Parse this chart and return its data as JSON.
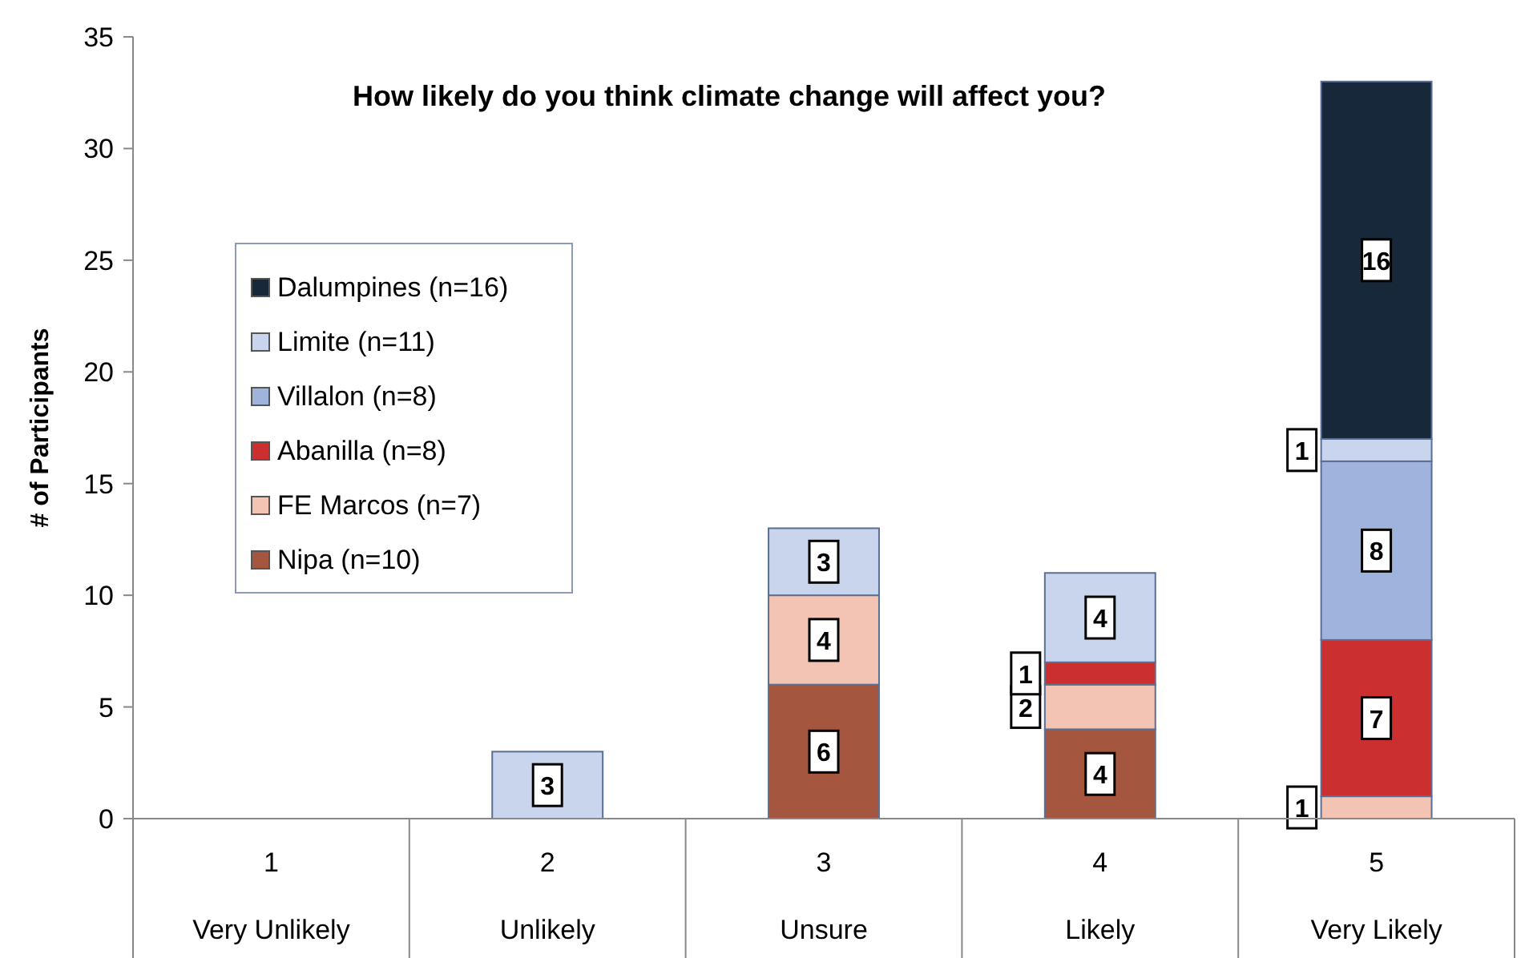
{
  "chart_data": {
    "type": "bar",
    "title": "How likely do you think climate change will affect you?",
    "ylabel": "# of Participants",
    "categories": [
      "1\nVery Unlikely",
      "2\nUnlikely",
      "3\nUnsure",
      "4\nLikely",
      "5\nVery Likely"
    ],
    "stacked": true,
    "data_labels": true,
    "legend": "top left",
    "ylim": [
      0,
      35
    ],
    "yticks": [
      0,
      5,
      10,
      15,
      20,
      25,
      30,
      35
    ],
    "grid": false,
    "series": [
      {
        "name": "Nipa (n=10)",
        "color": "#a5563f",
        "values": [
          null,
          null,
          6,
          4,
          null
        ]
      },
      {
        "name": "FE Marcos (n=7)",
        "color": "#f3c4b4",
        "values": [
          null,
          null,
          4,
          2,
          1
        ]
      },
      {
        "name": "Abanilla (n=8)",
        "color": "#cc2f2f",
        "values": [
          null,
          null,
          null,
          1,
          7
        ]
      },
      {
        "name": "Villalon (n=8)",
        "color": "#9fb4dc",
        "values": [
          null,
          null,
          null,
          null,
          8
        ]
      },
      {
        "name": "Limite (n=11)",
        "color": "#c9d5ec",
        "values": [
          null,
          3,
          3,
          4,
          1
        ]
      },
      {
        "name": "Dalumpines (n=16)",
        "color": "#17283a",
        "values": [
          null,
          null,
          null,
          null,
          16
        ]
      }
    ]
  }
}
